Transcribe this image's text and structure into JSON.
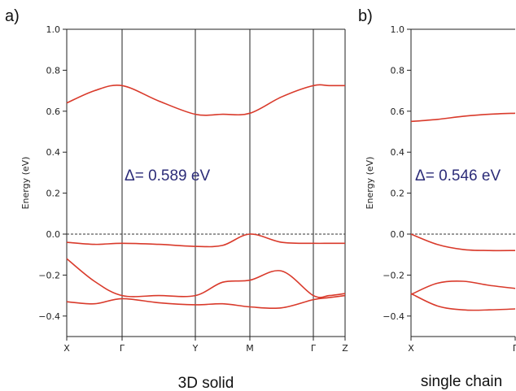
{
  "chart_data": [
    {
      "type": "line",
      "panel_label": "a)",
      "caption": "3D solid",
      "ylabel": "Energy (eV)",
      "ylim": [
        -0.5,
        1.0
      ],
      "yticks": [
        1.0,
        0.8,
        0.6,
        0.4,
        0.2,
        0.0,
        -0.2,
        -0.4
      ],
      "x_labels": [
        "X",
        "Γ",
        "Y",
        "M",
        "Γ",
        "Z"
      ],
      "x_ticks": [
        0,
        1,
        2,
        3,
        4,
        5
      ],
      "fermi_level": 0.0,
      "annotation": "Δ= 0.589 eV",
      "line_color": "#d93a2b",
      "bands": [
        {
          "x": [
            0,
            0.5,
            1,
            1.5,
            2,
            2.5,
            3,
            3.5,
            4,
            4.5,
            5
          ],
          "y": [
            0.64,
            0.7,
            0.725,
            0.65,
            0.585,
            0.585,
            0.59,
            0.67,
            0.725,
            0.725,
            0.725
          ]
        },
        {
          "x": [
            0,
            0.5,
            1,
            1.5,
            2,
            2.5,
            3,
            3.5,
            4,
            4.5,
            5
          ],
          "y": [
            -0.04,
            -0.05,
            -0.045,
            -0.05,
            -0.06,
            -0.055,
            0.0,
            -0.04,
            -0.045,
            -0.045,
            -0.045
          ]
        },
        {
          "x": [
            0,
            0.5,
            1,
            1.5,
            2,
            2.5,
            3,
            3.5,
            4,
            4.5,
            5
          ],
          "y": [
            -0.12,
            -0.23,
            -0.3,
            -0.3,
            -0.3,
            -0.235,
            -0.225,
            -0.18,
            -0.3,
            -0.3,
            -0.29
          ]
        },
        {
          "x": [
            0,
            0.5,
            1,
            1.5,
            2,
            2.5,
            3,
            3.5,
            4,
            4.5,
            5
          ],
          "y": [
            -0.33,
            -0.34,
            -0.315,
            -0.335,
            -0.345,
            -0.34,
            -0.355,
            -0.36,
            -0.32,
            -0.31,
            -0.3
          ]
        }
      ]
    },
    {
      "type": "line",
      "panel_label": "b)",
      "caption": "single chain",
      "ylabel": "Energy (eV)",
      "ylim": [
        -0.5,
        1.0
      ],
      "yticks": [
        1.0,
        0.8,
        0.6,
        0.4,
        0.2,
        0.0,
        -0.2,
        -0.4
      ],
      "x_labels": [
        "X",
        "Γ"
      ],
      "x_ticks": [
        0,
        1
      ],
      "xlim": [
        0,
        1
      ],
      "fermi_level": 0.0,
      "annotation": "Δ= 0.546 eV",
      "line_color": "#d93a2b",
      "bands": [
        {
          "x": [
            0,
            0.25,
            0.5,
            0.75,
            1
          ],
          "y": [
            0.55,
            0.56,
            0.575,
            0.585,
            0.59
          ]
        },
        {
          "x": [
            0,
            0.25,
            0.5,
            0.75,
            1
          ],
          "y": [
            0.0,
            -0.05,
            -0.075,
            -0.08,
            -0.08
          ]
        },
        {
          "x": [
            0,
            0.25,
            0.5,
            0.75,
            1
          ],
          "y": [
            -0.295,
            -0.24,
            -0.23,
            -0.25,
            -0.265
          ]
        },
        {
          "x": [
            0,
            0.25,
            0.5,
            0.75,
            1
          ],
          "y": [
            -0.29,
            -0.35,
            -0.37,
            -0.37,
            -0.365
          ]
        }
      ]
    }
  ]
}
